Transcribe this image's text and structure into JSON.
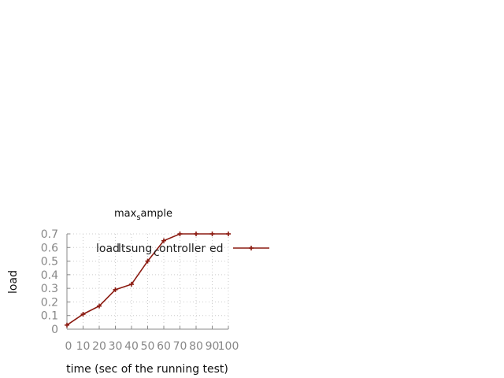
{
  "chart_data": {
    "type": "line",
    "title": "max",
    "title_subscript": "s",
    "title_rest": "ample",
    "xlabel": "time (sec of the running test)",
    "ylabel": "load",
    "x": [
      0,
      10,
      20,
      30,
      40,
      50,
      60,
      70,
      80,
      90,
      100
    ],
    "xlim": [
      0,
      100
    ],
    "ylim": [
      0,
      0.7
    ],
    "x_ticks": [
      "0",
      "10",
      "20",
      "30",
      "40",
      "50",
      "60",
      "70",
      "80",
      "90",
      "100"
    ],
    "y_ticks": [
      "0",
      "0.1",
      "0.2",
      "0.3",
      "0.4",
      "0.5",
      "0.6",
      "0.7"
    ],
    "grid": true,
    "legend_position": "top-right",
    "series": [
      {
        "name": "load",
        "name_pieces": [
          "load",
          "ltsung",
          "c",
          "ontroller",
          "ed"
        ],
        "color": "#8b1a10",
        "marker": "plus",
        "values": [
          0.03,
          0.11,
          0.17,
          0.29,
          0.33,
          0.5,
          0.65,
          0.7,
          0.7,
          0.7,
          0.7
        ]
      }
    ]
  }
}
